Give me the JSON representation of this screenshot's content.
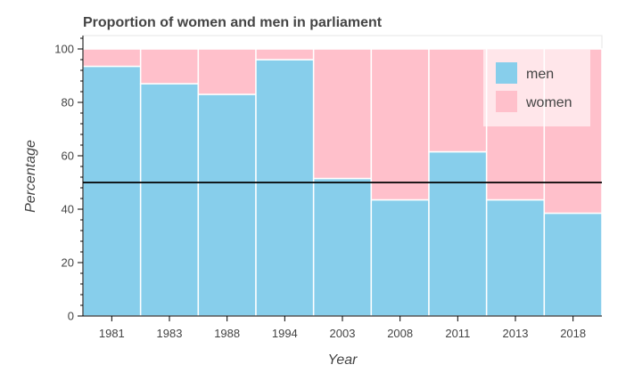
{
  "chart_data": {
    "type": "bar",
    "stacked": true,
    "title": "Proportion of women and men in parliament",
    "xlabel": "Year",
    "ylabel": "Percentage",
    "categories": [
      "1981",
      "1983",
      "1988",
      "1994",
      "2003",
      "2008",
      "2011",
      "2013",
      "2018"
    ],
    "series": [
      {
        "name": "men",
        "color": "#87ceeb",
        "values": [
          93.5,
          87,
          83,
          96,
          51.5,
          43.5,
          61.5,
          43.5,
          38.5
        ]
      },
      {
        "name": "women",
        "color": "#ffc0cb",
        "values": [
          6.5,
          13,
          17,
          4,
          48.5,
          56.5,
          38.5,
          56.5,
          61.5
        ]
      }
    ],
    "ylim": [
      0,
      105
    ],
    "yticks": [
      0,
      20,
      40,
      60,
      80,
      100
    ],
    "reference_line": {
      "y": 50,
      "color": "#000000"
    },
    "grid": false,
    "legend": {
      "placement": "top-right"
    }
  }
}
